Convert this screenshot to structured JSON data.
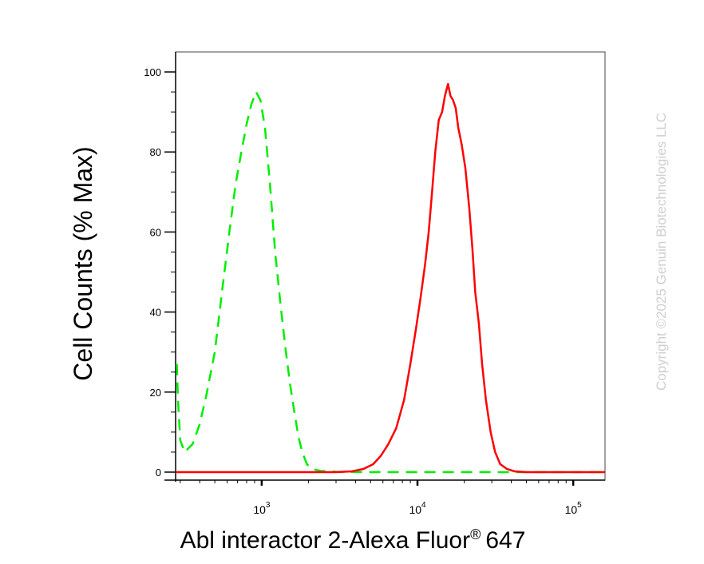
{
  "chart_data": {
    "type": "line",
    "title": "",
    "xlabel": "Abl interactor 2-Alexa Fluor",
    "xlabel_suffix": "647",
    "xlabel_mark": "®",
    "ylabel": "Cell Counts (% Max)",
    "x_scale": "log",
    "xlim": [
      280,
      160000
    ],
    "ylim": [
      -2,
      105
    ],
    "x_tick_labels": [
      {
        "value": 1000,
        "base": "10",
        "exp": "3"
      },
      {
        "value": 10000,
        "base": "10",
        "exp": "4"
      },
      {
        "value": 100000,
        "base": "10",
        "exp": "5"
      }
    ],
    "y_tick_labels": [
      "0",
      "20",
      "40",
      "60",
      "80",
      "100"
    ],
    "y_ticks": [
      0,
      20,
      40,
      60,
      80,
      100
    ],
    "grid": false,
    "legend": "none",
    "series": [
      {
        "color": "#00ee00",
        "style": "dashed",
        "points": [
          [
            285,
            27
          ],
          [
            290,
            18
          ],
          [
            300,
            8
          ],
          [
            320,
            5
          ],
          [
            360,
            7
          ],
          [
            400,
            12
          ],
          [
            440,
            19
          ],
          [
            500,
            30
          ],
          [
            560,
            46
          ],
          [
            620,
            60
          ],
          [
            680,
            72
          ],
          [
            740,
            80
          ],
          [
            800,
            87
          ],
          [
            860,
            92
          ],
          [
            920,
            95
          ],
          [
            980,
            93
          ],
          [
            1050,
            86
          ],
          [
            1130,
            72
          ],
          [
            1220,
            55
          ],
          [
            1320,
            42
          ],
          [
            1420,
            31
          ],
          [
            1520,
            22
          ],
          [
            1620,
            15
          ],
          [
            1720,
            9
          ],
          [
            1820,
            5
          ],
          [
            1950,
            2
          ],
          [
            2100,
            0.8
          ],
          [
            2400,
            0.3
          ],
          [
            3000,
            0.1
          ],
          [
            5000,
            0
          ],
          [
            10000,
            0
          ],
          [
            20000,
            0
          ],
          [
            50000,
            0
          ],
          [
            160000,
            0
          ]
        ]
      },
      {
        "color": "#ff0000",
        "style": "solid",
        "points": [
          [
            280,
            0
          ],
          [
            1000,
            0
          ],
          [
            3000,
            0
          ],
          [
            3800,
            0.2
          ],
          [
            4500,
            0.8
          ],
          [
            5200,
            2
          ],
          [
            5800,
            4
          ],
          [
            6500,
            7
          ],
          [
            7300,
            11
          ],
          [
            8200,
            18
          ],
          [
            9000,
            27
          ],
          [
            9800,
            36
          ],
          [
            10500,
            44
          ],
          [
            11200,
            52
          ],
          [
            11800,
            60
          ],
          [
            12400,
            70
          ],
          [
            13000,
            80
          ],
          [
            13700,
            88
          ],
          [
            14400,
            90
          ],
          [
            15000,
            94
          ],
          [
            15700,
            97
          ],
          [
            16300,
            94
          ],
          [
            16900,
            93
          ],
          [
            17600,
            91
          ],
          [
            18300,
            86
          ],
          [
            19200,
            82
          ],
          [
            20300,
            76
          ],
          [
            21500,
            66
          ],
          [
            22500,
            56
          ],
          [
            23500,
            45
          ],
          [
            24800,
            37
          ],
          [
            26000,
            27
          ],
          [
            27500,
            18
          ],
          [
            29500,
            10
          ],
          [
            31500,
            5
          ],
          [
            34000,
            2
          ],
          [
            37500,
            0.8
          ],
          [
            42000,
            0.2
          ],
          [
            50000,
            0
          ],
          [
            160000,
            0
          ]
        ]
      }
    ]
  },
  "watermark": "Copyright ©2025 Genuin Biotechnologies LLC"
}
